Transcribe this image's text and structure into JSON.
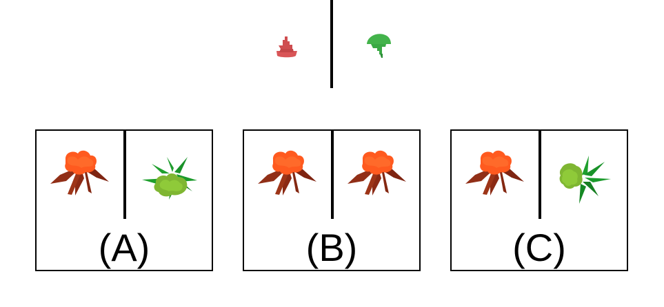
{
  "top": {
    "left_icon": "small-red-object-icon",
    "right_icon": "small-green-object-icon"
  },
  "choices": [
    {
      "label": "(A)",
      "left_icon": "red-flower-icon",
      "right_icon": "green-leafy-flower-icon"
    },
    {
      "label": "(B)",
      "left_icon": "red-flower-icon",
      "right_icon": "red-flower-icon"
    },
    {
      "label": "(C)",
      "left_icon": "red-flower-icon",
      "right_icon": "green-leafy-flower-side-icon"
    }
  ],
  "colors": {
    "line": "#000000",
    "red_petal": "#ff5a1f",
    "red_leaf": "#8b2a14",
    "green_leaf": "#1f9f2d",
    "green_flower": "#7fb632",
    "small_red": "#d95557",
    "small_green": "#43b34b"
  }
}
